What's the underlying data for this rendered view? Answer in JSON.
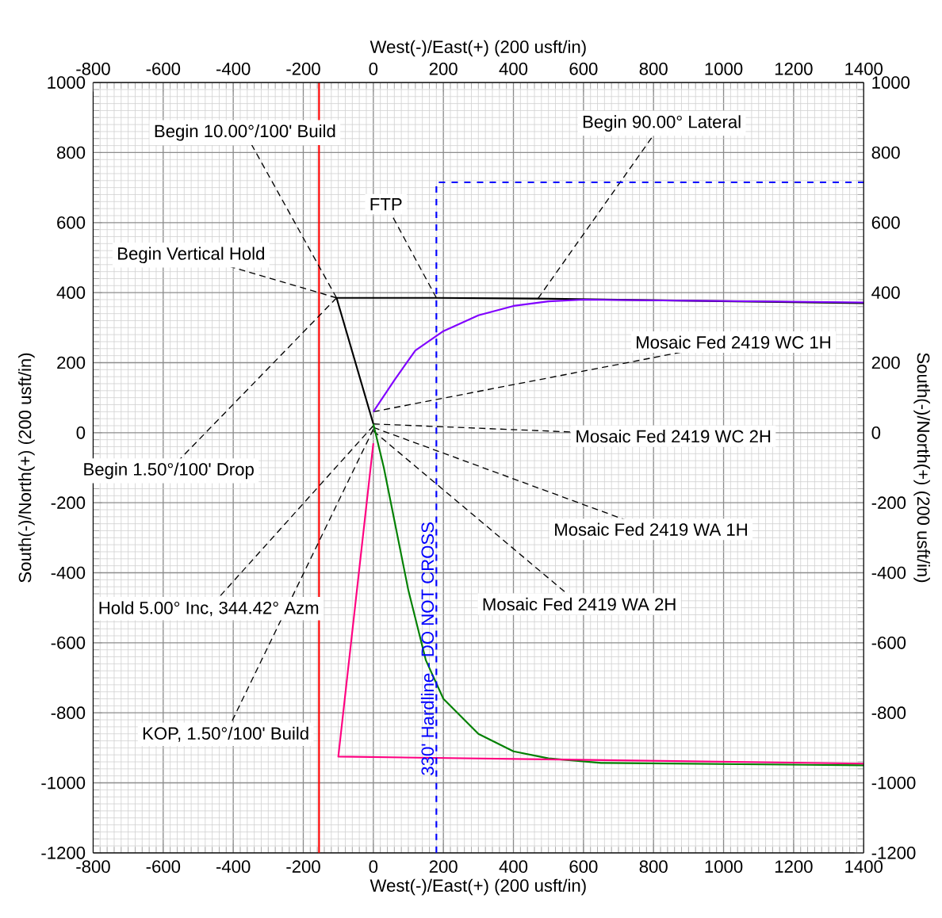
{
  "chart_data": {
    "type": "line",
    "xlabel": "West(-)/East(+) (200 usft/in)",
    "x2label": "West(-)/East(+) (200 usft/in)",
    "ylabel": "South(-)/North(+) (200 usft/in)",
    "y2label": "South(-)/North(+) (200 usft/in)",
    "xlim": [
      -800,
      1400
    ],
    "xticks": [
      -800,
      -600,
      -400,
      -200,
      0,
      200,
      400,
      600,
      800,
      1000,
      1200,
      1400
    ],
    "x2lim": [
      -800,
      1400
    ],
    "x2ticks": [
      -800,
      -600,
      -400,
      -200,
      0,
      200,
      400,
      600,
      800,
      1000,
      1200,
      1400
    ],
    "ylim": [
      -1200,
      1000
    ],
    "yticks": [
      -1200,
      -1000,
      -800,
      -600,
      -400,
      -200,
      0,
      200,
      400,
      600,
      800,
      1000
    ],
    "y2lim": [
      -1200,
      1000
    ],
    "y2ticks": [
      -1200,
      -1000,
      -800,
      -600,
      -400,
      -200,
      0,
      200,
      400,
      600,
      800,
      1000
    ],
    "grid": true,
    "marker": "none",
    "series": [
      {
        "color": "#000000",
        "x": [
          0,
          -105,
          180,
          470,
          1400
        ],
        "values": [
          25,
          385,
          385,
          383,
          370
        ]
      },
      {
        "color": "#8000ff",
        "x": [
          0,
          60,
          120,
          200,
          300,
          400,
          500,
          600,
          1400
        ],
        "values": [
          60,
          150,
          235,
          290,
          335,
          362,
          375,
          380,
          372
        ]
      },
      {
        "color": "#008000",
        "x": [
          0,
          30,
          60,
          100,
          150,
          200,
          300,
          400,
          500,
          650,
          1400
        ],
        "values": [
          25,
          -100,
          -250,
          -450,
          -650,
          -760,
          -860,
          -910,
          -930,
          -943,
          -950
        ]
      },
      {
        "color": "#ff0080",
        "x": [
          0,
          -100,
          650,
          1400
        ],
        "values": [
          -30,
          -925,
          -935,
          -945
        ]
      },
      {
        "name": "330' Hardline - DO NOT CROSS",
        "color": "#0000ff",
        "line_style": "dashed",
        "x": [
          180,
          180,
          1400
        ],
        "values": [
          -1200,
          715,
          715
        ]
      }
    ],
    "ref_lines": [
      {
        "axis": "x",
        "value": -155,
        "color": "#ff0000"
      }
    ],
    "annotations": [
      {
        "text": "Begin 10.00°/100' Build",
        "x": -105,
        "y": 385
      },
      {
        "text": "Begin 90.00° Lateral",
        "x": 470,
        "y": 383
      },
      {
        "text": "FTP",
        "x": 180,
        "y": 385
      },
      {
        "text": "Begin Vertical Hold",
        "x": -105,
        "y": 385
      },
      {
        "text": "Mosaic Fed 2419 WC 1H",
        "x": 0,
        "y": 60
      },
      {
        "text": "Mosaic Fed 2419 WC 2H",
        "x": 0,
        "y": 25
      },
      {
        "text": "Mosaic Fed 2419 WA 1H",
        "x": 0,
        "y": 15
      },
      {
        "text": "Mosaic Fed 2419 WA 2H",
        "x": 0,
        "y": 5
      },
      {
        "text": "Begin 1.50°/100' Drop",
        "x": -105,
        "y": 385
      },
      {
        "text": "Hold 5.00° Inc, 344.42° Azm",
        "x": 0,
        "y": 20
      },
      {
        "text": "KOP, 1.50°/100' Build",
        "x": 0,
        "y": 10
      }
    ]
  }
}
